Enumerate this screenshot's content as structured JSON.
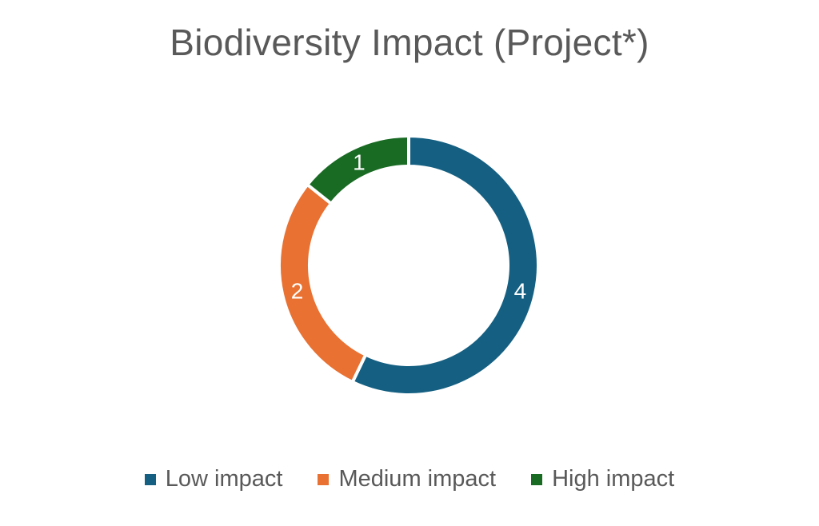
{
  "chart_data": {
    "type": "pie",
    "variant": "donut",
    "title": "Biodiversity Impact (Project*)",
    "categories": [
      "Low impact",
      "Medium impact",
      "High impact"
    ],
    "values": [
      4,
      2,
      1
    ],
    "data_labels": [
      "4",
      "2",
      "1"
    ],
    "colors": [
      "#156082",
      "#E97132",
      "#196B24"
    ],
    "legend_position": "bottom"
  }
}
